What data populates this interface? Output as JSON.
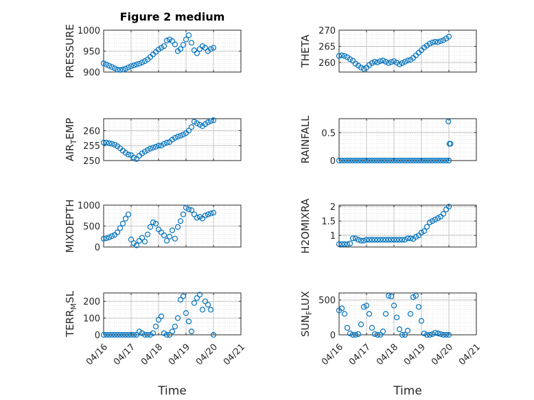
{
  "figure": {
    "title": "Figure 2 medium",
    "marker_color": "#0072bd",
    "grid": "dotted minor + major",
    "xlabel": "Time",
    "xticks": [
      "04/16",
      "04/17",
      "04/18",
      "04/19",
      "04/20",
      "04/21"
    ]
  },
  "chart_data": [
    {
      "type": "scatter",
      "marker": "circle",
      "ylabel": "PRESSURE",
      "ylim": [
        900,
        1000
      ],
      "yticks": [
        "900",
        "950",
        "1000"
      ],
      "xlim": [
        "04/16",
        "04/21"
      ],
      "x": [
        0.0,
        0.1,
        0.2,
        0.3,
        0.4,
        0.5,
        0.6,
        0.7,
        0.8,
        0.9,
        1.0,
        1.1,
        1.2,
        1.3,
        1.4,
        1.5,
        1.6,
        1.7,
        1.8,
        1.9,
        2.0,
        2.1,
        2.2,
        2.3,
        2.4,
        2.5,
        2.6,
        2.7,
        2.8,
        2.9,
        3.0,
        3.1,
        3.2,
        3.3,
        3.4,
        3.5,
        3.6,
        3.7,
        3.8,
        3.9,
        4.0
      ],
      "y": [
        921,
        918,
        915,
        912,
        909,
        906,
        905,
        906,
        908,
        911,
        914,
        916,
        918,
        920,
        923,
        926,
        930,
        936,
        942,
        948,
        954,
        958,
        962,
        975,
        978,
        974,
        966,
        950,
        955,
        965,
        978,
        988,
        970,
        952,
        945,
        955,
        962,
        958,
        950,
        955,
        958
      ]
    },
    {
      "type": "scatter",
      "marker": "circle",
      "ylabel": "THETA",
      "ylim": [
        257,
        270
      ],
      "yticks": [
        "260",
        "265",
        "270"
      ],
      "xlim": [
        "04/16",
        "04/21"
      ],
      "x": [
        0.0,
        0.1,
        0.2,
        0.3,
        0.4,
        0.5,
        0.6,
        0.7,
        0.8,
        0.9,
        1.0,
        1.1,
        1.2,
        1.3,
        1.4,
        1.5,
        1.6,
        1.7,
        1.8,
        1.9,
        2.0,
        2.1,
        2.2,
        2.3,
        2.4,
        2.5,
        2.6,
        2.7,
        2.8,
        2.9,
        3.0,
        3.1,
        3.2,
        3.3,
        3.4,
        3.5,
        3.6,
        3.7,
        3.8,
        3.9,
        4.0
      ],
      "y": [
        262,
        262.2,
        262,
        261.6,
        261,
        260.5,
        259.6,
        259,
        258.4,
        258,
        258.4,
        259.2,
        259.8,
        260.2,
        260,
        260.4,
        260.6,
        260.2,
        259.8,
        260.1,
        260.4,
        259.9,
        259.4,
        259.8,
        260.2,
        260.6,
        260.8,
        261.4,
        262.2,
        263,
        263.8,
        264.6,
        265.2,
        265.8,
        266.2,
        266.4,
        266.3,
        266.6,
        266.9,
        267.4,
        268
      ]
    },
    {
      "type": "scatter",
      "marker": "circle",
      "ylabel": "AIR_TEMP",
      "ylim": [
        250,
        264
      ],
      "yticks": [
        "250",
        "255",
        "260"
      ],
      "xlim": [
        "04/16",
        "04/21"
      ],
      "x": [
        0.0,
        0.1,
        0.2,
        0.3,
        0.4,
        0.5,
        0.6,
        0.7,
        0.8,
        0.9,
        1.0,
        1.1,
        1.2,
        1.3,
        1.4,
        1.5,
        1.6,
        1.7,
        1.8,
        1.9,
        2.0,
        2.1,
        2.2,
        2.3,
        2.4,
        2.5,
        2.6,
        2.7,
        2.8,
        2.9,
        3.0,
        3.1,
        3.2,
        3.3,
        3.4,
        3.5,
        3.6,
        3.7,
        3.8,
        3.9,
        4.0
      ],
      "y": [
        256,
        256,
        255.8,
        255.6,
        255.3,
        254.8,
        254.1,
        253.3,
        252.6,
        252,
        251.8,
        251,
        250.5,
        251.6,
        252.4,
        253,
        253.5,
        254,
        254.3,
        254.6,
        255,
        255,
        255.6,
        256,
        256.2,
        257,
        257.6,
        258,
        258.3,
        258.7,
        259.2,
        260,
        261.2,
        263,
        262.5,
        262,
        261.5,
        262.2,
        262.8,
        263.2,
        263.5
      ]
    },
    {
      "type": "scatter",
      "marker": "circle",
      "ylabel": "RAINFALL",
      "ylim": [
        0,
        0.75
      ],
      "yticks": [
        "0",
        "0.5"
      ],
      "xlim": [
        "04/16",
        "04/21"
      ],
      "x": [
        0.0,
        0.1,
        0.2,
        0.3,
        0.4,
        0.5,
        0.6,
        0.7,
        0.8,
        0.9,
        1.0,
        1.1,
        1.2,
        1.3,
        1.4,
        1.5,
        1.6,
        1.7,
        1.8,
        1.9,
        2.0,
        2.1,
        2.2,
        2.3,
        2.4,
        2.5,
        2.6,
        2.7,
        2.8,
        2.9,
        3.0,
        3.1,
        3.2,
        3.3,
        3.4,
        3.5,
        3.6,
        3.7,
        3.8,
        3.9,
        4.0,
        3.98,
        4.02,
        4.06
      ],
      "y": [
        0,
        0,
        0,
        0,
        0,
        0,
        0,
        0,
        0,
        0,
        0,
        0,
        0,
        0,
        0,
        0,
        0,
        0,
        0,
        0,
        0,
        0,
        0,
        0,
        0,
        0,
        0,
        0,
        0,
        0,
        0,
        0,
        0,
        0,
        0,
        0,
        0,
        0,
        0,
        0,
        0,
        0.7,
        0.3,
        0.3
      ]
    },
    {
      "type": "scatter",
      "marker": "circle",
      "ylabel": "MIXDEPTH",
      "ylim": [
        0,
        1000
      ],
      "yticks": [
        "0",
        "500",
        "1000"
      ],
      "xlim": [
        "04/16",
        "04/21"
      ],
      "x": [
        0.0,
        0.1,
        0.2,
        0.3,
        0.4,
        0.5,
        0.6,
        0.7,
        0.8,
        0.9,
        1.0,
        1.1,
        1.2,
        1.3,
        1.4,
        1.5,
        1.6,
        1.7,
        1.8,
        1.9,
        2.0,
        2.1,
        2.2,
        2.3,
        2.4,
        2.5,
        2.6,
        2.7,
        2.8,
        2.9,
        3.0,
        3.1,
        3.2,
        3.3,
        3.4,
        3.5,
        3.6,
        3.7,
        3.8,
        3.9,
        4.0
      ],
      "y": [
        200,
        210,
        230,
        260,
        290,
        350,
        450,
        560,
        680,
        780,
        180,
        90,
        40,
        150,
        220,
        130,
        300,
        480,
        590,
        560,
        420,
        350,
        280,
        150,
        250,
        400,
        200,
        480,
        620,
        780,
        940,
        900,
        880,
        780,
        700,
        720,
        680,
        750,
        780,
        800,
        820
      ]
    },
    {
      "type": "scatter",
      "marker": "circle",
      "ylabel": "H2OMIXRA",
      "ylim": [
        0.6,
        2.05
      ],
      "yticks": [
        "1",
        "1.5",
        "2"
      ],
      "xlim": [
        "04/16",
        "04/21"
      ],
      "x": [
        0.0,
        0.1,
        0.2,
        0.3,
        0.4,
        0.5,
        0.6,
        0.7,
        0.8,
        0.9,
        1.0,
        1.1,
        1.2,
        1.3,
        1.4,
        1.5,
        1.6,
        1.7,
        1.8,
        1.9,
        2.0,
        2.1,
        2.2,
        2.3,
        2.4,
        2.5,
        2.6,
        2.7,
        2.8,
        2.9,
        3.0,
        3.1,
        3.2,
        3.3,
        3.4,
        3.5,
        3.6,
        3.7,
        3.8,
        3.9,
        4.0
      ],
      "y": [
        0.7,
        0.7,
        0.7,
        0.7,
        0.72,
        0.9,
        0.9,
        0.85,
        0.82,
        0.82,
        0.85,
        0.85,
        0.85,
        0.85,
        0.85,
        0.85,
        0.85,
        0.85,
        0.85,
        0.85,
        0.85,
        0.85,
        0.85,
        0.85,
        0.85,
        0.9,
        0.9,
        0.88,
        0.95,
        1.0,
        1.1,
        1.15,
        1.3,
        1.45,
        1.5,
        1.55,
        1.6,
        1.65,
        1.75,
        1.9,
        2.0
      ]
    },
    {
      "type": "scatter",
      "marker": "circle",
      "ylabel": "TERR_MSL",
      "ylim": [
        0,
        250
      ],
      "yticks": [
        "0",
        "100",
        "200"
      ],
      "xlim": [
        "04/16",
        "04/21"
      ],
      "x": [
        0.0,
        0.1,
        0.2,
        0.3,
        0.4,
        0.5,
        0.6,
        0.7,
        0.8,
        0.9,
        1.0,
        1.1,
        1.2,
        1.3,
        1.4,
        1.5,
        1.6,
        1.7,
        1.8,
        1.9,
        2.0,
        2.1,
        2.2,
        2.3,
        2.4,
        2.5,
        2.6,
        2.7,
        2.8,
        2.9,
        3.0,
        3.1,
        3.2,
        3.3,
        3.4,
        3.5,
        3.6,
        3.7,
        3.8,
        3.9,
        4.0
      ],
      "y": [
        0,
        0,
        0,
        0,
        0,
        0,
        0,
        0,
        0,
        0,
        0,
        0,
        0,
        20,
        10,
        0,
        0,
        0,
        10,
        50,
        90,
        110,
        10,
        0,
        0,
        20,
        50,
        100,
        210,
        230,
        130,
        80,
        20,
        190,
        220,
        240,
        150,
        200,
        180,
        150,
        0
      ]
    },
    {
      "type": "scatter",
      "marker": "circle",
      "ylabel": "SUN_FLUX",
      "ylim": [
        0,
        600
      ],
      "yticks": [
        "0",
        "500"
      ],
      "xlim": [
        "04/16",
        "04/21"
      ],
      "x": [
        0.0,
        0.1,
        0.2,
        0.3,
        0.4,
        0.5,
        0.6,
        0.7,
        0.8,
        0.9,
        1.0,
        1.1,
        1.2,
        1.3,
        1.4,
        1.5,
        1.6,
        1.7,
        1.8,
        1.9,
        2.0,
        2.1,
        2.2,
        2.3,
        2.4,
        2.5,
        2.6,
        2.7,
        2.8,
        2.9,
        3.0,
        3.1,
        3.2,
        3.3,
        3.4,
        3.5,
        3.6,
        3.7,
        3.8,
        3.9,
        4.0
      ],
      "y": [
        350,
        380,
        300,
        100,
        20,
        0,
        0,
        10,
        150,
        400,
        420,
        300,
        100,
        10,
        0,
        0,
        50,
        300,
        560,
        550,
        420,
        250,
        80,
        0,
        0,
        60,
        300,
        540,
        560,
        400,
        200,
        20,
        0,
        0,
        10,
        30,
        20,
        10,
        0,
        0,
        0
      ]
    }
  ]
}
